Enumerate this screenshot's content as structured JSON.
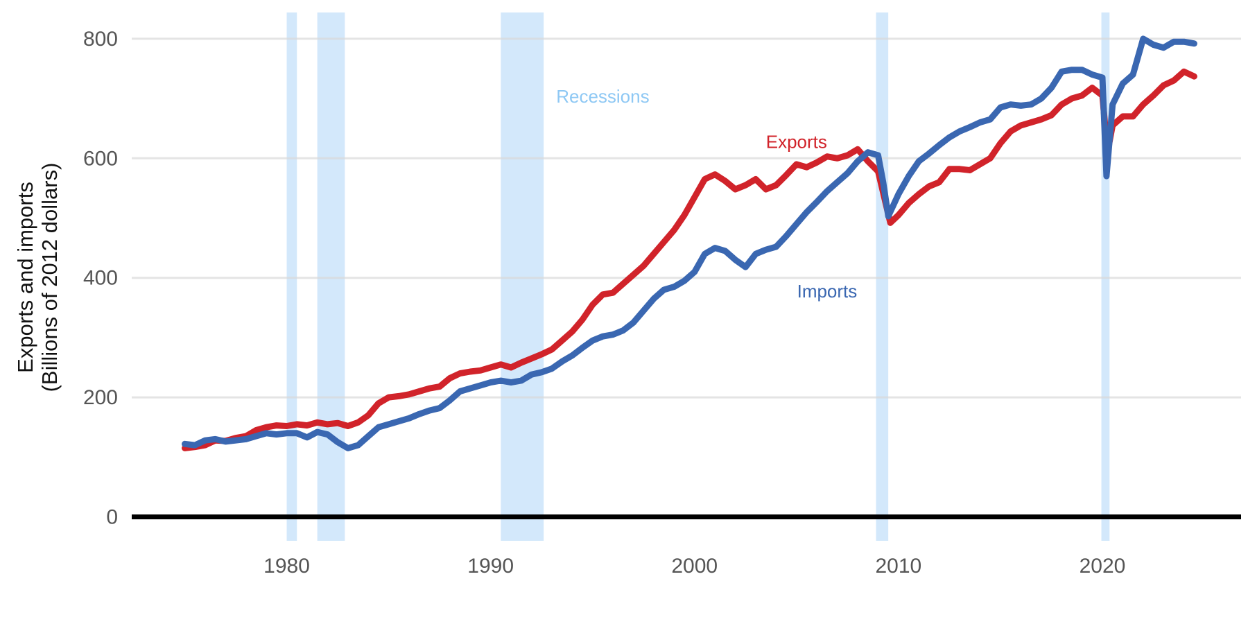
{
  "chart_data": {
    "type": "line",
    "ylabel_line1": "Exports and imports",
    "ylabel_line2": "(Billions of 2012 dollars)",
    "xlim": [
      1972.4,
      2026.8
    ],
    "ylim": [
      -40,
      830
    ],
    "x_ticks": [
      1980,
      1990,
      2000,
      2010,
      2020
    ],
    "x_tick_labels": [
      "1980",
      "1990",
      "2000",
      "2010",
      "2020"
    ],
    "y_ticks": [
      0,
      200,
      400,
      600,
      800
    ],
    "y_tick_labels": [
      "0",
      "200",
      "400",
      "600",
      "800"
    ],
    "grid": "horizontal",
    "recessions": {
      "label": "Recessions",
      "color": "#d3e8fb",
      "label_color": "#8ec8f4",
      "periods": [
        [
          1980.0,
          1980.5
        ],
        [
          1981.5,
          1982.85
        ],
        [
          1990.5,
          1992.6
        ],
        [
          2008.9,
          2009.5
        ],
        [
          2019.95,
          2020.35
        ]
      ]
    },
    "series": [
      {
        "name": "Exports",
        "color": "#d1232a",
        "points": [
          [
            1975.0,
            115
          ],
          [
            1975.5,
            117
          ],
          [
            1976.0,
            120
          ],
          [
            1976.5,
            128
          ],
          [
            1977.0,
            127
          ],
          [
            1977.5,
            132
          ],
          [
            1978.0,
            135
          ],
          [
            1978.5,
            145
          ],
          [
            1979.0,
            150
          ],
          [
            1979.5,
            153
          ],
          [
            1980.0,
            152
          ],
          [
            1980.5,
            155
          ],
          [
            1981.0,
            153
          ],
          [
            1981.5,
            158
          ],
          [
            1982.0,
            155
          ],
          [
            1982.5,
            157
          ],
          [
            1983.0,
            152
          ],
          [
            1983.5,
            158
          ],
          [
            1984.0,
            170
          ],
          [
            1984.5,
            190
          ],
          [
            1985.0,
            200
          ],
          [
            1985.5,
            202
          ],
          [
            1986.0,
            205
          ],
          [
            1986.5,
            210
          ],
          [
            1987.0,
            215
          ],
          [
            1987.5,
            218
          ],
          [
            1988.0,
            232
          ],
          [
            1988.5,
            240
          ],
          [
            1989.0,
            243
          ],
          [
            1989.5,
            245
          ],
          [
            1990.0,
            250
          ],
          [
            1990.5,
            255
          ],
          [
            1991.0,
            250
          ],
          [
            1991.5,
            258
          ],
          [
            1992.0,
            265
          ],
          [
            1992.5,
            272
          ],
          [
            1993.0,
            280
          ],
          [
            1993.5,
            295
          ],
          [
            1994.0,
            310
          ],
          [
            1994.5,
            330
          ],
          [
            1995.0,
            355
          ],
          [
            1995.5,
            372
          ],
          [
            1996.0,
            375
          ],
          [
            1996.5,
            390
          ],
          [
            1997.0,
            405
          ],
          [
            1997.5,
            420
          ],
          [
            1998.0,
            440
          ],
          [
            1998.5,
            460
          ],
          [
            1999.0,
            480
          ],
          [
            1999.5,
            505
          ],
          [
            2000.0,
            535
          ],
          [
            2000.5,
            565
          ],
          [
            2001.0,
            573
          ],
          [
            2001.5,
            562
          ],
          [
            2002.0,
            548
          ],
          [
            2002.5,
            555
          ],
          [
            2003.0,
            565
          ],
          [
            2003.5,
            548
          ],
          [
            2004.0,
            555
          ],
          [
            2004.5,
            572
          ],
          [
            2005.0,
            590
          ],
          [
            2005.5,
            585
          ],
          [
            2006.0,
            593
          ],
          [
            2006.5,
            603
          ],
          [
            2007.0,
            600
          ],
          [
            2007.5,
            605
          ],
          [
            2008.0,
            615
          ],
          [
            2008.5,
            595
          ],
          [
            2009.0,
            578
          ],
          [
            2009.3,
            535
          ],
          [
            2009.6,
            492
          ],
          [
            2010.0,
            505
          ],
          [
            2010.5,
            525
          ],
          [
            2011.0,
            540
          ],
          [
            2011.5,
            553
          ],
          [
            2012.0,
            560
          ],
          [
            2012.5,
            582
          ],
          [
            2013.0,
            582
          ],
          [
            2013.5,
            580
          ],
          [
            2014.0,
            590
          ],
          [
            2014.5,
            600
          ],
          [
            2015.0,
            625
          ],
          [
            2015.5,
            645
          ],
          [
            2016.0,
            655
          ],
          [
            2016.5,
            660
          ],
          [
            2017.0,
            665
          ],
          [
            2017.5,
            672
          ],
          [
            2018.0,
            690
          ],
          [
            2018.5,
            700
          ],
          [
            2019.0,
            705
          ],
          [
            2019.5,
            718
          ],
          [
            2020.0,
            705
          ],
          [
            2020.25,
            610
          ],
          [
            2020.5,
            655
          ],
          [
            2021.0,
            670
          ],
          [
            2021.5,
            670
          ],
          [
            2022.0,
            690
          ],
          [
            2022.5,
            705
          ],
          [
            2023.0,
            722
          ],
          [
            2023.5,
            730
          ],
          [
            2024.0,
            745
          ],
          [
            2024.5,
            737
          ]
        ]
      },
      {
        "name": "Imports",
        "color": "#3a67b1",
        "points": [
          [
            1975.0,
            122
          ],
          [
            1975.5,
            120
          ],
          [
            1976.0,
            128
          ],
          [
            1976.5,
            130
          ],
          [
            1977.0,
            126
          ],
          [
            1977.5,
            128
          ],
          [
            1978.0,
            130
          ],
          [
            1978.5,
            135
          ],
          [
            1979.0,
            140
          ],
          [
            1979.5,
            138
          ],
          [
            1980.0,
            140
          ],
          [
            1980.5,
            140
          ],
          [
            1981.0,
            133
          ],
          [
            1981.5,
            142
          ],
          [
            1982.0,
            138
          ],
          [
            1982.5,
            125
          ],
          [
            1983.0,
            115
          ],
          [
            1983.5,
            120
          ],
          [
            1984.0,
            135
          ],
          [
            1984.5,
            150
          ],
          [
            1985.0,
            155
          ],
          [
            1985.5,
            160
          ],
          [
            1986.0,
            165
          ],
          [
            1986.5,
            172
          ],
          [
            1987.0,
            178
          ],
          [
            1987.5,
            182
          ],
          [
            1988.0,
            195
          ],
          [
            1988.5,
            210
          ],
          [
            1989.0,
            215
          ],
          [
            1989.5,
            220
          ],
          [
            1990.0,
            225
          ],
          [
            1990.5,
            228
          ],
          [
            1991.0,
            225
          ],
          [
            1991.5,
            228
          ],
          [
            1992.0,
            238
          ],
          [
            1992.5,
            242
          ],
          [
            1993.0,
            248
          ],
          [
            1993.5,
            260
          ],
          [
            1994.0,
            270
          ],
          [
            1994.5,
            283
          ],
          [
            1995.0,
            295
          ],
          [
            1995.5,
            302
          ],
          [
            1996.0,
            305
          ],
          [
            1996.5,
            312
          ],
          [
            1997.0,
            325
          ],
          [
            1997.5,
            345
          ],
          [
            1998.0,
            365
          ],
          [
            1998.5,
            380
          ],
          [
            1999.0,
            385
          ],
          [
            1999.5,
            395
          ],
          [
            2000.0,
            410
          ],
          [
            2000.5,
            440
          ],
          [
            2001.0,
            450
          ],
          [
            2001.5,
            445
          ],
          [
            2002.0,
            430
          ],
          [
            2002.5,
            418
          ],
          [
            2003.0,
            440
          ],
          [
            2003.5,
            447
          ],
          [
            2004.0,
            452
          ],
          [
            2004.5,
            470
          ],
          [
            2005.0,
            490
          ],
          [
            2005.5,
            510
          ],
          [
            2006.0,
            527
          ],
          [
            2006.5,
            545
          ],
          [
            2007.0,
            560
          ],
          [
            2007.5,
            575
          ],
          [
            2008.0,
            595
          ],
          [
            2008.5,
            610
          ],
          [
            2009.0,
            605
          ],
          [
            2009.25,
            560
          ],
          [
            2009.5,
            503
          ],
          [
            2010.0,
            540
          ],
          [
            2010.5,
            570
          ],
          [
            2011.0,
            595
          ],
          [
            2011.5,
            608
          ],
          [
            2012.0,
            622
          ],
          [
            2012.5,
            635
          ],
          [
            2013.0,
            645
          ],
          [
            2013.5,
            652
          ],
          [
            2014.0,
            660
          ],
          [
            2014.5,
            665
          ],
          [
            2015.0,
            685
          ],
          [
            2015.5,
            690
          ],
          [
            2016.0,
            688
          ],
          [
            2016.5,
            690
          ],
          [
            2017.0,
            700
          ],
          [
            2017.5,
            718
          ],
          [
            2018.0,
            745
          ],
          [
            2018.5,
            748
          ],
          [
            2019.0,
            748
          ],
          [
            2019.5,
            740
          ],
          [
            2020.0,
            735
          ],
          [
            2020.2,
            570
          ],
          [
            2020.5,
            690
          ],
          [
            2021.0,
            725
          ],
          [
            2021.5,
            740
          ],
          [
            2022.0,
            800
          ],
          [
            2022.5,
            790
          ],
          [
            2023.0,
            785
          ],
          [
            2023.5,
            795
          ],
          [
            2024.0,
            795
          ],
          [
            2024.5,
            792
          ]
        ]
      }
    ],
    "series_labels": [
      {
        "text": "Exports",
        "color": "#d1232a",
        "x": 2005.0,
        "y": 617
      },
      {
        "text": "Imports",
        "color": "#3a67b1",
        "x": 2006.5,
        "y": 367
      }
    ],
    "recession_label_pos": {
      "x": 1995.5,
      "y": 693
    }
  }
}
